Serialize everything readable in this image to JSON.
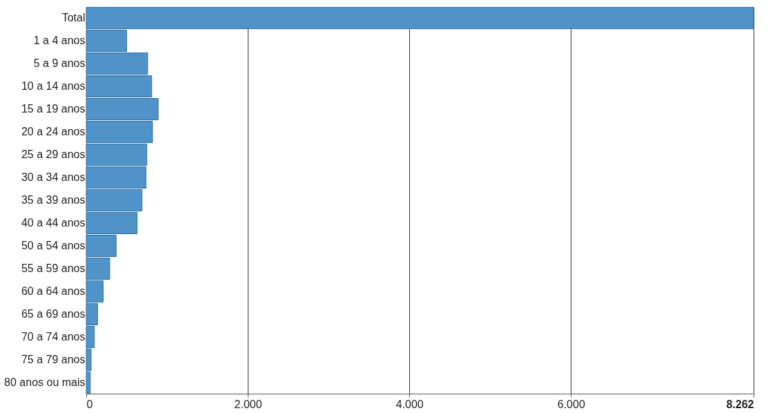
{
  "chart_data": {
    "type": "bar",
    "orientation": "horizontal",
    "categories": [
      "Total",
      "1 a 4 anos",
      "5 a 9 anos",
      "10 a 14 anos",
      "15 a 19 anos",
      "20 a 24 anos",
      "25 a 29 anos",
      "30 a 34 anos",
      "35 a 39 anos",
      "40 a 44 anos",
      "50 a 54 anos",
      "55 a 59 anos",
      "60 a 64 anos",
      "65 a 69 anos",
      "70 a 74 anos",
      "75 a 79 anos",
      "80 anos ou mais"
    ],
    "values": [
      8262,
      500,
      760,
      810,
      890,
      820,
      750,
      740,
      690,
      630,
      370,
      290,
      210,
      140,
      100,
      60,
      50
    ],
    "color": "#4f93c8",
    "xlim": [
      0,
      8262
    ],
    "xticks": [
      0,
      {
        "value": 2000,
        "label": "2.000"
      },
      {
        "value": 4000,
        "label": "4.000"
      },
      {
        "value": 6000,
        "label": "6.000"
      },
      {
        "value": 8262,
        "label": "8.262"
      }
    ],
    "grid": "x"
  }
}
